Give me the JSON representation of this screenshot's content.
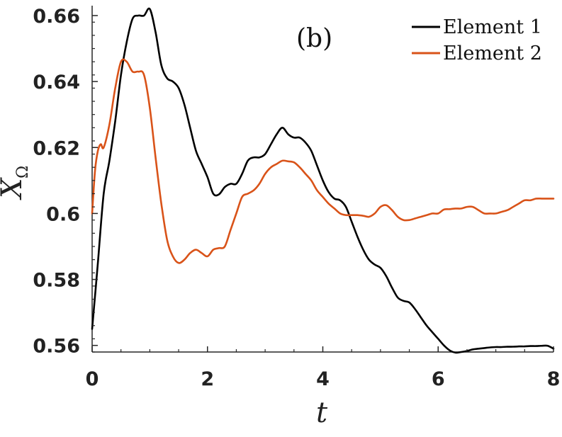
{
  "chart_data": {
    "type": "line",
    "panel_label": "(b)",
    "xlabel": "t",
    "ylabel_main": "X",
    "ylabel_sub": "Ω",
    "xlim": [
      0,
      8
    ],
    "ylim": [
      0.558,
      0.663
    ],
    "xticks": [
      0,
      2,
      4,
      6,
      8
    ],
    "xtick_labels": [
      "0",
      "2",
      "4",
      "6",
      "8"
    ],
    "yticks": [
      0.56,
      0.58,
      0.6,
      0.62,
      0.64,
      0.66
    ],
    "ytick_labels": [
      "0.56",
      "0.58",
      "0.6",
      "0.62",
      "0.64",
      "0.66"
    ],
    "grid": false,
    "legend_position": "top-right",
    "series": [
      {
        "name": "Element 1",
        "color": "#000000",
        "x": [
          0,
          0.1,
          0.2,
          0.3,
          0.4,
          0.5,
          0.6,
          0.7,
          0.8,
          0.9,
          1.0,
          1.1,
          1.2,
          1.3,
          1.4,
          1.5,
          1.6,
          1.7,
          1.8,
          1.9,
          2.0,
          2.1,
          2.2,
          2.3,
          2.4,
          2.5,
          2.6,
          2.7,
          2.8,
          2.9,
          3.0,
          3.1,
          3.2,
          3.3,
          3.4,
          3.5,
          3.6,
          3.7,
          3.8,
          3.9,
          4.0,
          4.1,
          4.2,
          4.3,
          4.4,
          4.5,
          4.6,
          4.7,
          4.8,
          4.9,
          5.0,
          5.1,
          5.2,
          5.3,
          5.4,
          5.5,
          5.6,
          5.7,
          5.8,
          5.9,
          6.0,
          6.1,
          6.2,
          6.3,
          6.4,
          6.5,
          6.6,
          6.7,
          6.8,
          6.9,
          7.0,
          7.1,
          7.2,
          7.3,
          7.4,
          7.5,
          7.6,
          7.7,
          7.8,
          7.9,
          8.0
        ],
        "y": [
          0.565,
          0.585,
          0.606,
          0.616,
          0.628,
          0.642,
          0.652,
          0.659,
          0.66,
          0.66,
          0.662,
          0.655,
          0.645,
          0.641,
          0.64,
          0.638,
          0.633,
          0.626,
          0.619,
          0.615,
          0.611,
          0.606,
          0.6058,
          0.608,
          0.609,
          0.609,
          0.612,
          0.616,
          0.617,
          0.617,
          0.618,
          0.621,
          0.624,
          0.626,
          0.624,
          0.623,
          0.623,
          0.6215,
          0.619,
          0.6145,
          0.61,
          0.6065,
          0.6045,
          0.604,
          0.602,
          0.5975,
          0.593,
          0.589,
          0.586,
          0.5845,
          0.5835,
          0.581,
          0.5775,
          0.5745,
          0.5735,
          0.573,
          0.571,
          0.5685,
          0.566,
          0.564,
          0.562,
          0.56,
          0.5585,
          0.5578,
          0.558,
          0.5583,
          0.5588,
          0.559,
          0.5592,
          0.5594,
          0.5595,
          0.5595,
          0.5596,
          0.5596,
          0.5597,
          0.5597,
          0.5598,
          0.5598,
          0.5599,
          0.5599,
          0.559
        ]
      },
      {
        "name": "Element 2",
        "color": "#d95319",
        "x": [
          0,
          0.05,
          0.1,
          0.15,
          0.2,
          0.3,
          0.4,
          0.5,
          0.6,
          0.7,
          0.8,
          0.9,
          1.0,
          1.1,
          1.2,
          1.3,
          1.4,
          1.5,
          1.6,
          1.7,
          1.8,
          1.9,
          2.0,
          2.1,
          2.2,
          2.3,
          2.4,
          2.5,
          2.6,
          2.7,
          2.8,
          2.9,
          3.0,
          3.1,
          3.2,
          3.3,
          3.4,
          3.5,
          3.6,
          3.7,
          3.8,
          3.9,
          4.0,
          4.1,
          4.2,
          4.3,
          4.4,
          4.5,
          4.6,
          4.7,
          4.8,
          4.9,
          5.0,
          5.1,
          5.2,
          5.3,
          5.4,
          5.5,
          5.6,
          5.7,
          5.8,
          5.9,
          6.0,
          6.1,
          6.2,
          6.3,
          6.4,
          6.5,
          6.6,
          6.7,
          6.8,
          6.9,
          7.0,
          7.1,
          7.2,
          7.3,
          7.4,
          7.5,
          7.6,
          7.7,
          7.8,
          7.9,
          8.0
        ],
        "y": [
          0.6,
          0.613,
          0.619,
          0.621,
          0.62,
          0.627,
          0.638,
          0.646,
          0.646,
          0.643,
          0.643,
          0.642,
          0.632,
          0.617,
          0.603,
          0.592,
          0.587,
          0.585,
          0.586,
          0.588,
          0.589,
          0.588,
          0.587,
          0.589,
          0.5895,
          0.59,
          0.595,
          0.6,
          0.605,
          0.606,
          0.607,
          0.609,
          0.612,
          0.614,
          0.615,
          0.616,
          0.6158,
          0.6155,
          0.614,
          0.612,
          0.61,
          0.607,
          0.605,
          0.603,
          0.6015,
          0.6,
          0.5995,
          0.5995,
          0.5995,
          0.5993,
          0.599,
          0.6,
          0.602,
          0.6025,
          0.601,
          0.599,
          0.598,
          0.598,
          0.5985,
          0.599,
          0.5995,
          0.6,
          0.6,
          0.6012,
          0.6013,
          0.6015,
          0.6015,
          0.602,
          0.602,
          0.601,
          0.6,
          0.6,
          0.6,
          0.6005,
          0.601,
          0.602,
          0.603,
          0.604,
          0.604,
          0.6045,
          0.6045,
          0.6045,
          0.6045
        ]
      }
    ]
  }
}
